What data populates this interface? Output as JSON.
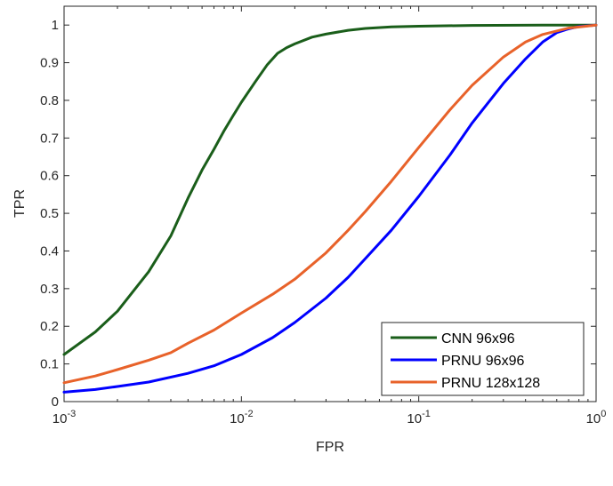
{
  "chart_data": {
    "type": "line",
    "title": "",
    "xlabel": "FPR",
    "ylabel": "TPR",
    "xscale": "log",
    "xlim": [
      0.001,
      1
    ],
    "ylim": [
      0,
      1.05
    ],
    "x_ticks": [
      {
        "value": 0.001,
        "base": "10",
        "exp": "-3"
      },
      {
        "value": 0.01,
        "base": "10",
        "exp": "-2"
      },
      {
        "value": 0.1,
        "base": "10",
        "exp": "-1"
      },
      {
        "value": 1,
        "base": "10",
        "exp": "0"
      }
    ],
    "y_ticks": [
      {
        "value": 0,
        "label": "0"
      },
      {
        "value": 0.1,
        "label": "0.1"
      },
      {
        "value": 0.2,
        "label": "0.2"
      },
      {
        "value": 0.3,
        "label": "0.3"
      },
      {
        "value": 0.4,
        "label": "0.4"
      },
      {
        "value": 0.5,
        "label": "0.5"
      },
      {
        "value": 0.6,
        "label": "0.6"
      },
      {
        "value": 0.7,
        "label": "0.7"
      },
      {
        "value": 0.8,
        "label": "0.8"
      },
      {
        "value": 0.9,
        "label": "0.9"
      },
      {
        "value": 1,
        "label": "1"
      }
    ],
    "grid": false,
    "legend_position": "bottom-right",
    "series": [
      {
        "name": "CNN 96x96",
        "color": "#1a5e1a",
        "points": [
          [
            0.001,
            0.125
          ],
          [
            0.0015,
            0.185
          ],
          [
            0.002,
            0.24
          ],
          [
            0.003,
            0.345
          ],
          [
            0.004,
            0.44
          ],
          [
            0.005,
            0.54
          ],
          [
            0.006,
            0.615
          ],
          [
            0.007,
            0.67
          ],
          [
            0.008,
            0.72
          ],
          [
            0.009,
            0.76
          ],
          [
            0.01,
            0.795
          ],
          [
            0.012,
            0.85
          ],
          [
            0.014,
            0.895
          ],
          [
            0.016,
            0.925
          ],
          [
            0.018,
            0.94
          ],
          [
            0.02,
            0.95
          ],
          [
            0.025,
            0.968
          ],
          [
            0.03,
            0.976
          ],
          [
            0.04,
            0.986
          ],
          [
            0.05,
            0.991
          ],
          [
            0.07,
            0.995
          ],
          [
            0.1,
            0.997
          ],
          [
            0.2,
            0.999
          ],
          [
            0.5,
            1.0
          ],
          [
            1,
            1.0
          ]
        ]
      },
      {
        "name": "PRNU 96x96",
        "color": "#0000ff",
        "points": [
          [
            0.001,
            0.025
          ],
          [
            0.0015,
            0.032
          ],
          [
            0.002,
            0.04
          ],
          [
            0.003,
            0.052
          ],
          [
            0.005,
            0.075
          ],
          [
            0.007,
            0.095
          ],
          [
            0.01,
            0.125
          ],
          [
            0.015,
            0.17
          ],
          [
            0.02,
            0.21
          ],
          [
            0.03,
            0.275
          ],
          [
            0.04,
            0.33
          ],
          [
            0.05,
            0.38
          ],
          [
            0.07,
            0.455
          ],
          [
            0.1,
            0.545
          ],
          [
            0.15,
            0.655
          ],
          [
            0.2,
            0.74
          ],
          [
            0.3,
            0.845
          ],
          [
            0.4,
            0.91
          ],
          [
            0.5,
            0.955
          ],
          [
            0.6,
            0.98
          ],
          [
            0.7,
            0.99
          ],
          [
            0.8,
            0.996
          ],
          [
            1,
            1.0
          ]
        ]
      },
      {
        "name": "PRNU 128x128",
        "color": "#e8622a",
        "points": [
          [
            0.001,
            0.05
          ],
          [
            0.0015,
            0.068
          ],
          [
            0.002,
            0.085
          ],
          [
            0.003,
            0.11
          ],
          [
            0.004,
            0.13
          ],
          [
            0.005,
            0.155
          ],
          [
            0.007,
            0.19
          ],
          [
            0.01,
            0.235
          ],
          [
            0.015,
            0.285
          ],
          [
            0.02,
            0.325
          ],
          [
            0.03,
            0.395
          ],
          [
            0.04,
            0.455
          ],
          [
            0.05,
            0.505
          ],
          [
            0.07,
            0.585
          ],
          [
            0.1,
            0.675
          ],
          [
            0.15,
            0.775
          ],
          [
            0.2,
            0.84
          ],
          [
            0.3,
            0.915
          ],
          [
            0.4,
            0.955
          ],
          [
            0.5,
            0.975
          ],
          [
            0.7,
            0.992
          ],
          [
            1,
            1.0
          ]
        ]
      }
    ]
  }
}
